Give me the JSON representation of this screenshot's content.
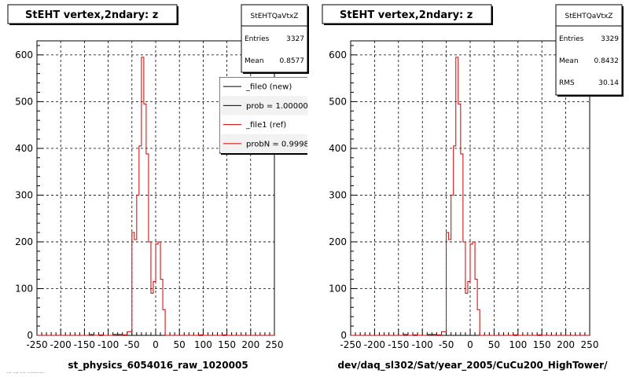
{
  "panels": [
    {
      "title": "StEHT  vertex,2ndary: z",
      "stats": {
        "name": "StEHTQaVtxZ",
        "rows": [
          {
            "label": "Entries",
            "value": "3327"
          },
          {
            "label": "Mean",
            "value": "0.8577"
          }
        ]
      },
      "legend": [
        {
          "label": "_file0 (new)",
          "color": "#000000"
        },
        {
          "label": "prob = 1.000000",
          "color": "#000000"
        },
        {
          "label": "_file1 (ref)",
          "color": "#cc0000"
        },
        {
          "label": "probN = 0.999800",
          "color": "#cc0000"
        }
      ],
      "xlabel": "st_physics_6054016_raw_1020005"
    },
    {
      "title": "StEHT  vertex,2ndary: z",
      "stats": {
        "name": "StEHTQaVtxZ",
        "rows": [
          {
            "label": "Entries",
            "value": "3329"
          },
          {
            "label": "Mean",
            "value": "0.8432"
          },
          {
            "label": "RMS",
            "value": "30.14"
          }
        ]
      },
      "legend": [],
      "xlabel": "dev/daq_sl302/Sat/year_2005/CuCu200_HighTower/"
    }
  ],
  "footer": "... ... ... ..........",
  "chart_data": [
    {
      "type": "histogram",
      "xlim": [
        -250,
        250
      ],
      "ylim": [
        0,
        630
      ],
      "grid": true,
      "x_ticks": [
        -250,
        -200,
        -150,
        -100,
        -50,
        0,
        50,
        100,
        150,
        200,
        250
      ],
      "y_ticks": [
        0,
        100,
        200,
        300,
        400,
        500,
        600
      ],
      "bin_edges": [
        -250,
        -240,
        -230,
        -220,
        -210,
        -200,
        -190,
        -180,
        -170,
        -160,
        -150,
        -140,
        -130,
        -120,
        -110,
        -100,
        -90,
        -80,
        -70,
        -60,
        -50,
        -45,
        -40,
        -35,
        -30,
        -25,
        -20,
        -15,
        -10,
        -5,
        0,
        5,
        10,
        15,
        20,
        25,
        30,
        35,
        40,
        45,
        50,
        55,
        60,
        65,
        70,
        75,
        80,
        90,
        100,
        110,
        120,
        130,
        140,
        150,
        160,
        170,
        180,
        190,
        200,
        210,
        220,
        230,
        240,
        250
      ],
      "series": [
        {
          "name": "_file1 (ref)",
          "color": "#cc0000",
          "values": [
            0,
            0,
            0,
            0,
            0,
            0,
            0,
            0,
            0,
            0,
            0,
            2,
            0,
            1,
            0,
            0,
            2,
            2,
            1,
            8,
            220,
            205,
            300,
            405,
            595,
            495,
            388,
            200,
            90,
            115,
            195,
            200,
            120,
            55,
            0,
            0,
            0,
            0,
            0,
            0,
            0,
            0,
            0,
            0,
            0,
            0,
            0,
            1,
            0,
            0,
            0,
            0,
            1,
            0,
            0,
            0,
            0,
            0,
            0,
            0,
            0,
            0,
            0
          ]
        }
      ]
    },
    {
      "type": "histogram",
      "xlim": [
        -250,
        250
      ],
      "ylim": [
        0,
        630
      ],
      "grid": true,
      "x_ticks": [
        -250,
        -200,
        -150,
        -100,
        -50,
        0,
        50,
        100,
        150,
        200,
        250
      ],
      "y_ticks": [
        0,
        100,
        200,
        300,
        400,
        500,
        600
      ],
      "bin_edges": [
        -250,
        -240,
        -230,
        -220,
        -210,
        -200,
        -190,
        -180,
        -170,
        -160,
        -150,
        -140,
        -130,
        -120,
        -110,
        -100,
        -90,
        -80,
        -70,
        -60,
        -50,
        -45,
        -40,
        -35,
        -30,
        -25,
        -20,
        -15,
        -10,
        -5,
        0,
        5,
        10,
        15,
        20,
        25,
        30,
        35,
        40,
        45,
        50,
        55,
        60,
        65,
        70,
        75,
        80,
        90,
        100,
        110,
        120,
        130,
        140,
        150,
        160,
        170,
        180,
        190,
        200,
        210,
        220,
        230,
        240,
        250
      ],
      "series": [
        {
          "name": "",
          "color": "#cc0000",
          "values": [
            0,
            0,
            0,
            0,
            0,
            0,
            0,
            0,
            0,
            0,
            0,
            2,
            0,
            1,
            0,
            0,
            2,
            2,
            1,
            8,
            220,
            205,
            300,
            405,
            595,
            495,
            388,
            200,
            90,
            115,
            195,
            200,
            120,
            55,
            0,
            0,
            0,
            0,
            0,
            0,
            0,
            0,
            0,
            0,
            0,
            0,
            0,
            1,
            0,
            0,
            0,
            0,
            1,
            0,
            0,
            0,
            0,
            0,
            0,
            0,
            0,
            0,
            0
          ]
        }
      ]
    }
  ]
}
